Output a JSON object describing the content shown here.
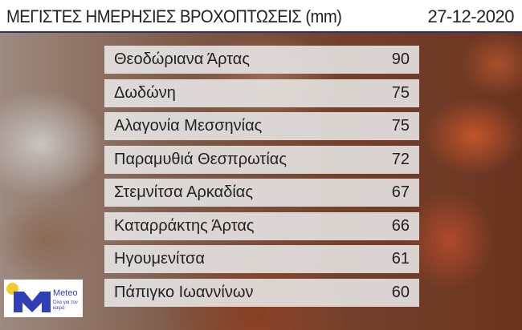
{
  "header": {
    "title": "ΜΕΓΙΣΤΕΣ ΗΜΕΡΗΣΙΕΣ ΒΡΟΧΟΠΤΩΣΕΙΣ (mm)",
    "date": "27-12-2020"
  },
  "rows": [
    {
      "name": "Θεοδώριανα Άρτας",
      "value": "90"
    },
    {
      "name": "Δωδώνη",
      "value": "75"
    },
    {
      "name": "Αλαγονία Μεσσηνίας",
      "value": "75"
    },
    {
      "name": "Παραμυθιά Θεσπρωτίας",
      "value": "72"
    },
    {
      "name": "Στεμνίτσα Αρκαδίας",
      "value": "67"
    },
    {
      "name": "Καταρράκτης Άρτας",
      "value": "66"
    },
    {
      "name": "Ηγουμενίτσα",
      "value": "61"
    },
    {
      "name": "Πάπιγκο Ιωαννίνων",
      "value": "60"
    }
  ],
  "logo": {
    "brand": "Meteo",
    "tagline": "Όλα για τον καιρό",
    "colors": {
      "blue": "#2e3fb8",
      "yellow": "#f2cc2e"
    }
  }
}
